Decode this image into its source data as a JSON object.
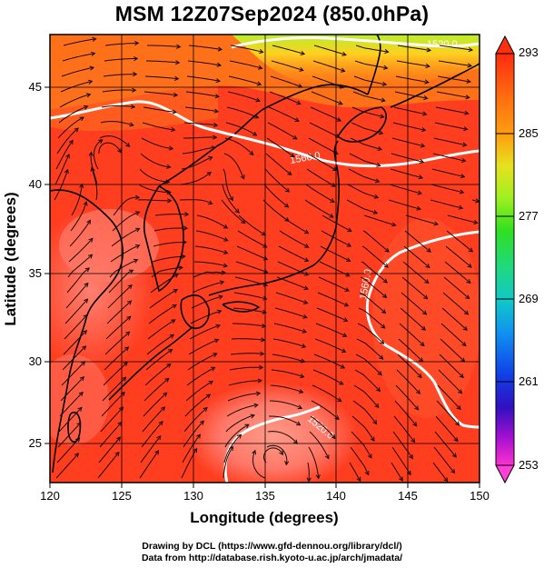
{
  "title": "MSM 12Z07Sep2024 (850.0hPa)",
  "x_axis": {
    "label": "Longitude (degrees)",
    "ticks": [
      "120",
      "125",
      "130",
      "135",
      "140",
      "145",
      "150"
    ]
  },
  "y_axis": {
    "label": "Latitude  (degrees)",
    "ticks": [
      "25",
      "30",
      "35",
      "40",
      "45"
    ]
  },
  "colorbar": {
    "labels": [
      "293",
      "285",
      "277",
      "269",
      "261",
      "253"
    ]
  },
  "contour_labels": [
    "1560.0",
    "1520.0",
    "1560.0",
    "1520.0"
  ],
  "credits": {
    "line1": "Drawing by DCL (https://www.gfd-dennou.org/library/dcl/)",
    "line2": "Data from http://database.rish.kyoto-u.ac.jp/arch/jmadata/"
  },
  "colors": {
    "warm": "#ff3a1e",
    "hot": "#ff7a6a",
    "orange": "#ff8c1a",
    "yellow_green": "#c8f028",
    "contour": "#ffffff",
    "land_outline": "#000000"
  },
  "icons": [
    "streamline-arrow",
    "colorbar-up-triangle",
    "colorbar-down-triangle"
  ]
}
